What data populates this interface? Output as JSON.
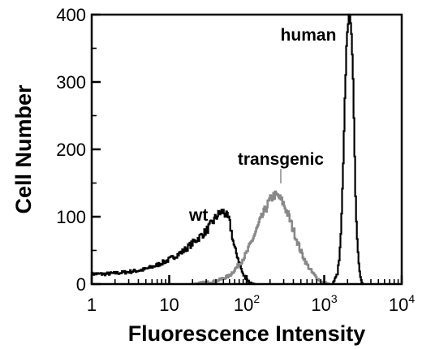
{
  "chart_data": {
    "type": "line",
    "xlabel": "Fluorescence Intensity",
    "ylabel": "Cell Number",
    "x_scale": "log",
    "xlim": [
      1,
      10000
    ],
    "ylim": [
      0,
      400
    ],
    "x_ticks": [
      {
        "value": 1,
        "base": "1",
        "exp": ""
      },
      {
        "value": 10,
        "base": "10",
        "exp": ""
      },
      {
        "value": 100,
        "base": "10",
        "exp": "2"
      },
      {
        "value": 1000,
        "base": "10",
        "exp": "3"
      },
      {
        "value": 10000,
        "base": "10",
        "exp": "4"
      }
    ],
    "y_ticks": [
      "0",
      "100",
      "200",
      "300",
      "400"
    ],
    "grid": false,
    "series": [
      {
        "name": "wt",
        "color": "#000000",
        "x": [
          1,
          1.5,
          2,
          3,
          4,
          5,
          7,
          10,
          15,
          20,
          25,
          30,
          35,
          40,
          45,
          50,
          55,
          60,
          65,
          70,
          80,
          90,
          100,
          110,
          120,
          130
        ],
        "y": [
          15,
          15,
          16,
          18,
          20,
          22,
          28,
          36,
          48,
          60,
          70,
          78,
          88,
          98,
          105,
          108,
          102,
          95,
          75,
          55,
          35,
          15,
          8,
          3,
          1,
          0
        ]
      },
      {
        "name": "transgenic",
        "color": "#888888",
        "x": [
          20,
          40,
          60,
          80,
          100,
          130,
          160,
          200,
          230,
          260,
          300,
          350,
          400,
          500,
          600,
          700,
          800,
          900,
          1000,
          1200
        ],
        "y": [
          0,
          4,
          12,
          28,
          45,
          75,
          100,
          124,
          132,
          130,
          120,
          102,
          82,
          50,
          30,
          18,
          10,
          5,
          2,
          0
        ]
      },
      {
        "name": "human",
        "color": "#000000",
        "x": [
          1300,
          1500,
          1600,
          1700,
          1800,
          1900,
          2000,
          2100,
          2200,
          2300,
          2400,
          2500,
          2600,
          2800,
          3000,
          3200
        ],
        "y": [
          0,
          15,
          40,
          100,
          190,
          300,
          375,
          400,
          400,
          370,
          290,
          190,
          110,
          35,
          8,
          0
        ]
      }
    ]
  }
}
